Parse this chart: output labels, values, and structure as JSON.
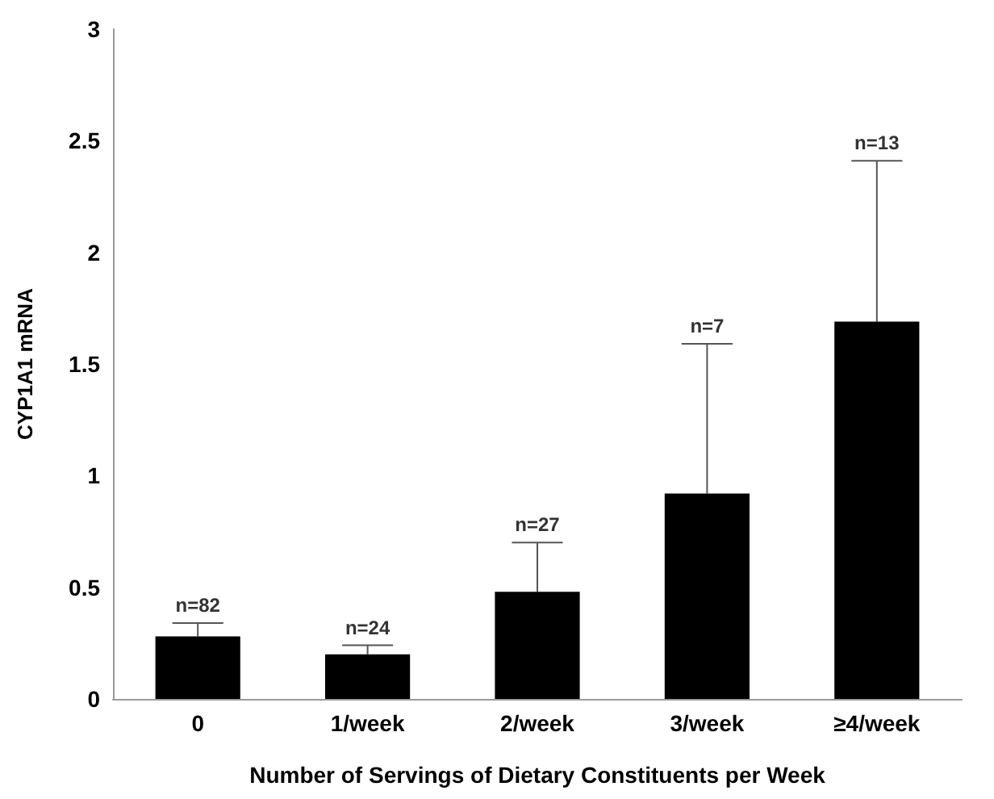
{
  "chart_data": {
    "type": "bar",
    "xlabel": "Number of Servings of Dietary Constituents per Week",
    "ylabel": "CYP1A1 mRNA",
    "categories": [
      "0",
      "1/week",
      "2/week",
      "3/week",
      "≥4/week"
    ],
    "values": [
      0.28,
      0.2,
      0.48,
      0.92,
      1.69
    ],
    "errors": [
      [
        0.28,
        0.34
      ],
      [
        0.2,
        0.24
      ],
      [
        0.48,
        0.7
      ],
      [
        0.92,
        1.59
      ],
      [
        1.69,
        2.41
      ]
    ],
    "color": "#000000",
    "ylim": [
      0,
      3
    ],
    "yticks": [
      0,
      0.5,
      1,
      1.5,
      2,
      2.5,
      3
    ],
    "grid": false,
    "annotations": [
      "n=82",
      "n=24",
      "n=27",
      "n=7",
      "n=13"
    ]
  }
}
